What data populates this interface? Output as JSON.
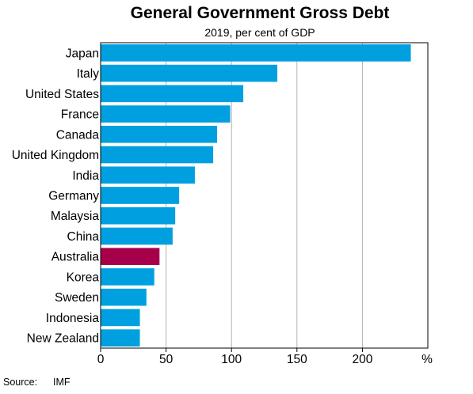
{
  "chart_data": {
    "type": "bar",
    "orientation": "horizontal",
    "title": "General Government Gross Debt",
    "subtitle": "2019, per cent of GDP",
    "xlabel": "",
    "ylabel": "",
    "unit": "%",
    "categories": [
      "Japan",
      "Italy",
      "United States",
      "France",
      "Canada",
      "United Kingdom",
      "India",
      "Germany",
      "Malaysia",
      "China",
      "Australia",
      "Korea",
      "Sweden",
      "Indonesia",
      "New Zealand"
    ],
    "values": [
      237,
      135,
      109,
      99,
      89,
      86,
      72,
      60,
      57,
      55,
      45,
      41,
      35,
      30,
      30
    ],
    "highlight_category": "Australia",
    "xlim": [
      0,
      250
    ],
    "xticks": [
      0,
      50,
      100,
      150,
      200
    ],
    "grid": "vertical",
    "colors": {
      "bar": "#00a0e0",
      "highlight": "#a6004a",
      "grid": "#b0b0b0",
      "axis": "#000000"
    },
    "source_label": "Source:",
    "source": "IMF"
  }
}
